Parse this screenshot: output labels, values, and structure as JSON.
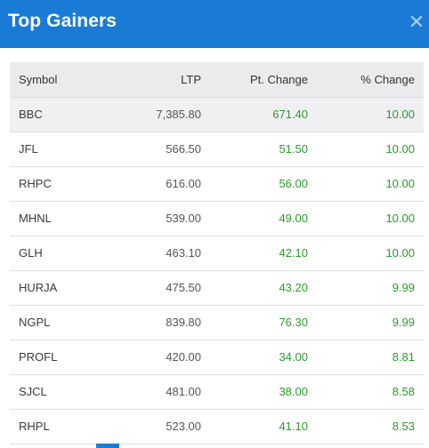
{
  "header": {
    "title": "Top Gainers",
    "close_icon": "close-icon",
    "close_glyph": "✕",
    "color": "#1a7bd6"
  },
  "table": {
    "columns": {
      "symbol": "Symbol",
      "ltp": "LTP",
      "pt_change": "Pt. Change",
      "pct_change": "% Change"
    },
    "rows": [
      {
        "symbol": "BBC",
        "ltp": "7,385.80",
        "pt_change": "671.40",
        "pct_change": "10.00"
      },
      {
        "symbol": "JFL",
        "ltp": "566.50",
        "pt_change": "51.50",
        "pct_change": "10.00"
      },
      {
        "symbol": "RHPC",
        "ltp": "616.00",
        "pt_change": "56.00",
        "pct_change": "10.00"
      },
      {
        "symbol": "MHNL",
        "ltp": "539.00",
        "pt_change": "49.00",
        "pct_change": "10.00"
      },
      {
        "symbol": "GLH",
        "ltp": "463.10",
        "pt_change": "42.10",
        "pct_change": "10.00"
      },
      {
        "symbol": "HURJA",
        "ltp": "475.50",
        "pt_change": "43.20",
        "pct_change": "9.99"
      },
      {
        "symbol": "NGPL",
        "ltp": "839.80",
        "pt_change": "76.30",
        "pct_change": "9.99"
      },
      {
        "symbol": "PROFL",
        "ltp": "420.00",
        "pt_change": "34.00",
        "pct_change": "8.81"
      },
      {
        "symbol": "SJCL",
        "ltp": "481.00",
        "pt_change": "38.00",
        "pct_change": "8.58"
      },
      {
        "symbol": "RHPL",
        "ltp": "523.00",
        "pt_change": "41.10",
        "pct_change": "8.53"
      }
    ],
    "gain_color": "#2b9a2b"
  }
}
